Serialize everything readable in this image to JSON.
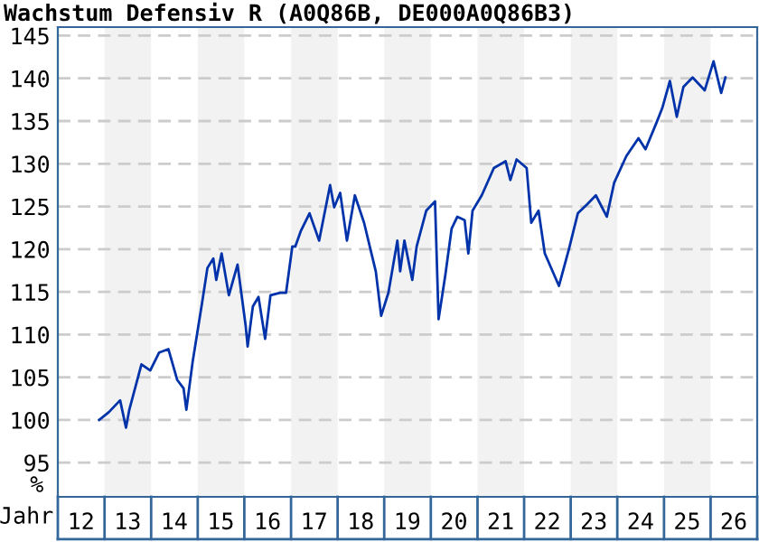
{
  "chart_data": {
    "type": "line",
    "title": "Wachstum Defensiv R (A0Q86B, DE000A0Q86B3)",
    "xlabel": "Jahr",
    "ylabel": "%",
    "x": [
      "2012-11-20",
      "2013-02-03",
      "2013-05-03",
      "2013-06-18",
      "2013-07-14",
      "2013-10-17",
      "2013-12-25",
      "2014-03-05",
      "2014-05-16",
      "2014-07-24",
      "2014-09-12",
      "2014-10-04",
      "2014-11-23",
      "2015-02-03",
      "2015-03-18",
      "2015-05-03",
      "2015-05-26",
      "2015-07-07",
      "2015-09-02",
      "2015-11-09",
      "2016-01-11",
      "2016-01-27",
      "2016-03-08",
      "2016-04-21",
      "2016-06-12",
      "2016-07-24",
      "2016-10-07",
      "2016-11-23",
      "2017-01-11",
      "2017-02-03",
      "2017-03-18",
      "2017-05-26",
      "2017-08-09",
      "2017-11-03",
      "2017-12-05",
      "2018-01-21",
      "2018-03-15",
      "2018-05-16",
      "2018-07-27",
      "2018-09-15",
      "2018-10-27",
      "2018-12-08",
      "2019-02-03",
      "2019-04-14",
      "2019-05-06",
      "2019-06-08",
      "2019-08-09",
      "2019-09-12",
      "2019-11-26",
      "2020-02-03",
      "2020-03-02",
      "2020-04-24",
      "2020-06-12",
      "2020-07-27",
      "2020-09-22",
      "2020-10-21",
      "2020-11-23",
      "2021-02-03",
      "2021-05-09",
      "2021-08-09",
      "2021-09-15",
      "2021-11-03",
      "2022-01-21",
      "2022-02-26",
      "2022-04-24",
      "2022-06-12",
      "2022-10-01",
      "2022-12-18",
      "2023-02-26",
      "2023-05-06",
      "2023-07-17",
      "2023-10-11",
      "2023-12-08",
      "2024-03-12",
      "2024-06-15",
      "2024-08-09",
      "2024-11-03",
      "2024-12-18",
      "2025-02-16",
      "2025-04-11",
      "2025-06-02",
      "2025-08-13",
      "2025-11-16",
      "2026-01-24",
      "2026-03-25",
      "2026-04-27"
    ],
    "series": [
      {
        "color": "#0033aa",
        "values": [
          100,
          100.9,
          102.3,
          99.1,
          101.2,
          106.5,
          105.8,
          107.9,
          108.3,
          104.7,
          103.7,
          101.2,
          106.9,
          113.6,
          117.8,
          118.9,
          116.4,
          119.5,
          114.6,
          118.2,
          111.1,
          108.6,
          113.3,
          114.4,
          109.5,
          114.6,
          114.9,
          114.9,
          120.3,
          120.3,
          122.1,
          124.2,
          121.0,
          127.5,
          124.9,
          126.6,
          121.0,
          126.3,
          123.1,
          120.0,
          117.4,
          112.2,
          114.9,
          121.0,
          117.4,
          121.0,
          116.4,
          120.3,
          124.5,
          125.6,
          111.8,
          117.0,
          122.4,
          123.8,
          123.4,
          119.5,
          124.5,
          126.3,
          129.5,
          130.3,
          128.1,
          130.5,
          129.5,
          123.1,
          124.5,
          119.5,
          115.7,
          120.0,
          124.2,
          125.2,
          126.3,
          123.8,
          127.8,
          130.9,
          133.0,
          131.7,
          134.8,
          136.5,
          139.7,
          135.5,
          139.0,
          140.1,
          138.6,
          142.0,
          138.3,
          140.1
        ]
      }
    ],
    "xlim": [
      "2012-01-01",
      "2027-01-01"
    ],
    "xticks": [
      {
        "value": "2012-07-01",
        "label": "12"
      },
      {
        "value": "2013-07-01",
        "label": "13"
      },
      {
        "value": "2014-07-01",
        "label": "14"
      },
      {
        "value": "2015-07-01",
        "label": "15"
      },
      {
        "value": "2016-07-01",
        "label": "16"
      },
      {
        "value": "2017-07-01",
        "label": "17"
      },
      {
        "value": "2018-07-01",
        "label": "18"
      },
      {
        "value": "2019-07-01",
        "label": "19"
      },
      {
        "value": "2020-07-01",
        "label": "20"
      },
      {
        "value": "2021-07-01",
        "label": "21"
      },
      {
        "value": "2022-07-01",
        "label": "22"
      },
      {
        "value": "2023-07-01",
        "label": "23"
      },
      {
        "value": "2024-07-01",
        "label": "24"
      },
      {
        "value": "2025-07-01",
        "label": "25"
      },
      {
        "value": "2026-07-01",
        "label": "26"
      }
    ],
    "ylim": [
      91,
      146
    ],
    "yticks": [
      95,
      100,
      105,
      110,
      115,
      120,
      125,
      130,
      135,
      140,
      145
    ],
    "bands": [
      {
        "axis": "x",
        "from": "2013-01-01",
        "to": "2014-01-01",
        "color": "#f2f2f2"
      },
      {
        "axis": "x",
        "from": "2015-01-01",
        "to": "2016-01-01",
        "color": "#f2f2f2"
      },
      {
        "axis": "x",
        "from": "2017-01-01",
        "to": "2018-01-01",
        "color": "#f2f2f2"
      },
      {
        "axis": "x",
        "from": "2019-01-01",
        "to": "2020-01-01",
        "color": "#f2f2f2"
      },
      {
        "axis": "x",
        "from": "2021-01-01",
        "to": "2022-01-01",
        "color": "#f2f2f2"
      },
      {
        "axis": "x",
        "from": "2023-01-01",
        "to": "2024-01-01",
        "color": "#f2f2f2"
      },
      {
        "axis": "x",
        "from": "2025-01-01",
        "to": "2026-01-01",
        "color": "#f2f2f2"
      }
    ],
    "grid": "y",
    "line_style": "solid",
    "marker": "none",
    "legend": false
  }
}
